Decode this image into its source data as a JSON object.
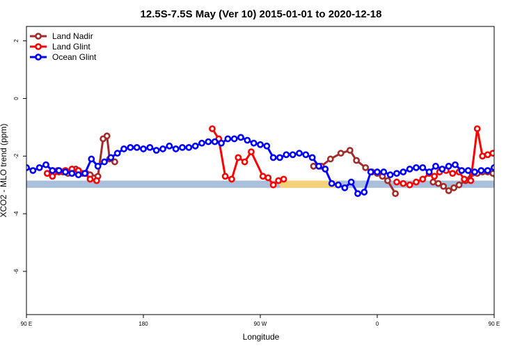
{
  "chart_data": {
    "type": "line",
    "title": "12.5S-7.5S May (Ver 10)   2015-01-01 to 2020-12-18",
    "xlabel": "Longitude",
    "ylabel": "XCO2 - MLO trend (ppm)",
    "xlim": [
      90,
      450
    ],
    "ylim": [
      -7.5,
      2.5
    ],
    "x_ticks": [
      {
        "value": 90,
        "label": "90 E"
      },
      {
        "value": 180,
        "label": "180"
      },
      {
        "value": 270,
        "label": "90 W"
      },
      {
        "value": 360,
        "label": "0"
      },
      {
        "value": 450,
        "label": "90 E"
      },
      {
        "value": 540,
        "label": "180"
      }
    ],
    "y_ticks": [
      {
        "value": 2,
        "label": "2"
      },
      {
        "value": 0,
        "label": "0"
      },
      {
        "value": -2,
        "label": "-2"
      },
      {
        "value": -4,
        "label": "-4"
      },
      {
        "value": -6,
        "label": "-6"
      }
    ],
    "grid": false,
    "legend_position": "top-left",
    "band": {
      "y_low": -3.1,
      "y_high": -2.85,
      "color": "#a9bfdc"
    },
    "land_patches": [
      {
        "x_start": 283,
        "x_end": 330,
        "color": "#f5d27a"
      }
    ],
    "series": [
      {
        "name": "Land Nadir",
        "color": "#a52a2a",
        "x": [
          106,
          110,
          114,
          118,
          122,
          125,
          128,
          133,
          136,
          139,
          145,
          149,
          152,
          154,
          158,
          311,
          317,
          324,
          332,
          339,
          344,
          351,
          356,
          360,
          364,
          368,
          374,
          403,
          407,
          411,
          415,
          419,
          423,
          428,
          433,
          437,
          441,
          445,
          449,
          452,
          455
        ],
        "y": [
          -2.6,
          -2.5,
          -2.5,
          -2.55,
          -2.6,
          -2.6,
          -2.45,
          -2.6,
          -2.6,
          -2.65,
          -2.7,
          -1.4,
          -1.3,
          -2.1,
          -2.2,
          -2.35,
          -2.35,
          -2.1,
          -1.9,
          -1.8,
          -2.15,
          -2.4,
          -2.55,
          -2.6,
          -2.7,
          -2.85,
          -3.3,
          -2.9,
          -2.95,
          -3.05,
          -3.2,
          -3.1,
          -3.0,
          -2.85,
          -2.6,
          -2.6,
          -2.55,
          -2.55,
          -2.6,
          -2.7,
          -2.7
        ]
      },
      {
        "name": "Land Glint",
        "color": "#ff0000",
        "x": [
          106,
          110,
          115,
          120,
          125,
          130,
          135,
          139,
          144,
          233,
          238,
          243,
          248,
          253,
          258,
          263,
          272,
          276,
          280,
          284,
          288,
          375,
          380,
          385,
          390,
          395,
          400,
          404,
          408,
          413,
          418,
          423,
          427,
          432,
          437,
          441,
          445,
          449
        ],
        "y": [
          -2.6,
          -2.7,
          -2.55,
          -2.5,
          -2.45,
          -2.5,
          -2.6,
          -2.8,
          -2.85,
          -1.05,
          -1.4,
          -2.7,
          -2.8,
          -2.05,
          -2.2,
          -1.85,
          -2.7,
          -2.75,
          -3.0,
          -2.85,
          -2.8,
          -2.9,
          -2.95,
          -3.0,
          -2.9,
          -2.8,
          -2.6,
          -2.7,
          -2.55,
          -2.5,
          -2.6,
          -2.55,
          -2.8,
          -2.85,
          -1.05,
          -2.0,
          -1.95,
          -1.9
        ]
      },
      {
        "name": "Ocean Glint",
        "color": "#0000ff",
        "x": [
          90,
          95,
          100,
          105,
          110,
          115,
          120,
          125,
          130,
          135,
          140,
          145,
          150,
          155,
          160,
          165,
          170,
          175,
          180,
          185,
          190,
          195,
          200,
          205,
          210,
          215,
          220,
          225,
          230,
          235,
          240,
          245,
          250,
          255,
          260,
          265,
          270,
          275,
          280,
          285,
          290,
          295,
          300,
          305,
          310,
          315,
          320,
          325,
          330,
          335,
          340,
          345,
          350,
          355,
          360,
          365,
          370,
          375,
          380,
          385,
          390,
          395,
          400,
          405,
          410,
          415,
          420,
          425,
          430,
          435,
          440,
          445,
          450
        ],
        "y": [
          -2.4,
          -2.5,
          -2.4,
          -2.3,
          -2.5,
          -2.5,
          -2.55,
          -2.6,
          -2.65,
          -2.6,
          -2.1,
          -2.35,
          -2.2,
          -2.05,
          -1.9,
          -1.75,
          -1.7,
          -1.7,
          -1.75,
          -1.7,
          -1.8,
          -1.75,
          -1.65,
          -1.75,
          -1.7,
          -1.7,
          -1.65,
          -1.55,
          -1.5,
          -1.5,
          -1.55,
          -1.4,
          -1.4,
          -1.35,
          -1.45,
          -1.55,
          -1.6,
          -1.65,
          -2.05,
          -2.05,
          -1.95,
          -1.95,
          -1.9,
          -1.95,
          -2.05,
          -2.35,
          -2.45,
          -2.95,
          -3.0,
          -3.1,
          -2.9,
          -3.3,
          -3.25,
          -2.55,
          -2.55,
          -2.55,
          -2.65,
          -2.6,
          -2.55,
          -2.45,
          -2.4,
          -2.4,
          -2.55,
          -2.35,
          -2.45,
          -2.35,
          -2.3,
          -2.5,
          -2.5,
          -2.55,
          -2.5,
          -2.5,
          -2.4
        ]
      }
    ]
  }
}
